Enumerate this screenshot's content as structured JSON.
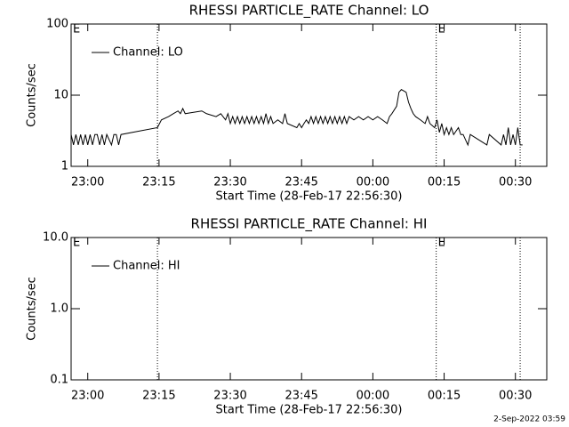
{
  "chart_data": [
    {
      "type": "line",
      "title": "RHESSI PARTICLE_RATE Channel: LO",
      "xlabel": "Start Time (28-Feb-17 22:56:30)",
      "ylabel": "Counts/sec",
      "log_y": true,
      "legend": "upper left",
      "xlim": [
        "22:56:30",
        "00:36:36"
      ],
      "xticks": [
        {
          "value": "23:00:00",
          "label": "23:00"
        },
        {
          "value": "23:15:00",
          "label": "23:15"
        },
        {
          "value": "23:30:00",
          "label": "23:30"
        },
        {
          "value": "23:45:00",
          "label": "23:45"
        },
        {
          "value": "00:00:00",
          "label": "00:00"
        },
        {
          "value": "00:15:00",
          "label": "00:15"
        },
        {
          "value": "00:30:00",
          "label": "00:30"
        }
      ],
      "ylim": [
        1,
        100
      ],
      "yticks": [
        1,
        10,
        100
      ],
      "vlines": [
        "23:14:40",
        "00:13:20",
        "00:31:00"
      ],
      "flags": [
        {
          "x": "22:56:30",
          "label": "E"
        },
        {
          "x": "00:13:20",
          "label": "E"
        }
      ],
      "series": [
        {
          "name": "Channel: LO",
          "color": "#000000",
          "x": [
            "22:56:30",
            "22:57:00",
            "22:57:30",
            "22:58:00",
            "22:58:30",
            "22:59:00",
            "22:59:30",
            "23:00:00",
            "23:00:30",
            "23:01:00",
            "23:01:30",
            "23:02:00",
            "23:02:30",
            "23:03:00",
            "23:03:30",
            "23:04:00",
            "23:05:00",
            "23:05:30",
            "23:06:00",
            "23:06:30",
            "23:07:00",
            "23:14:40",
            "23:15:30",
            "23:17:00",
            "23:18:00",
            "23:19:00",
            "23:19:30",
            "23:20:00",
            "23:20:30",
            "23:24:00",
            "23:25:00",
            "23:27:00",
            "23:28:00",
            "23:29:00",
            "23:29:30",
            "23:30:00",
            "23:30:30",
            "23:31:00",
            "23:31:30",
            "23:32:00",
            "23:32:30",
            "23:33:00",
            "23:33:30",
            "23:34:00",
            "23:34:30",
            "23:35:00",
            "23:35:30",
            "23:36:00",
            "23:36:30",
            "23:37:00",
            "23:37:30",
            "23:38:00",
            "23:38:30",
            "23:39:00",
            "23:40:00",
            "23:41:00",
            "23:41:30",
            "23:42:00",
            "23:44:00",
            "23:44:30",
            "23:45:00",
            "23:45:30",
            "23:46:00",
            "23:46:30",
            "23:47:00",
            "23:47:30",
            "23:48:00",
            "23:48:30",
            "23:49:00",
            "23:49:30",
            "23:50:00",
            "23:50:30",
            "23:51:00",
            "23:51:30",
            "23:52:00",
            "23:52:30",
            "23:53:00",
            "23:53:30",
            "23:54:00",
            "23:54:30",
            "23:55:00",
            "23:56:00",
            "23:57:00",
            "23:58:00",
            "23:59:00",
            "00:00:00",
            "00:01:00",
            "00:02:00",
            "00:03:00",
            "00:03:30",
            "00:04:00",
            "00:05:00",
            "00:05:30",
            "00:06:00",
            "00:07:00",
            "00:07:30",
            "00:08:00",
            "00:08:30",
            "00:09:00",
            "00:10:00",
            "00:11:00",
            "00:11:30",
            "00:12:00",
            "00:13:00",
            "00:13:30",
            "00:14:00",
            "00:14:30",
            "00:15:00",
            "00:15:30",
            "00:16:00",
            "00:16:30",
            "00:17:00",
            "00:18:00",
            "00:18:30",
            "00:19:00",
            "00:20:00",
            "00:20:30",
            "00:24:00",
            "00:24:30",
            "00:27:00",
            "00:27:30",
            "00:28:00",
            "00:28:30",
            "00:29:00",
            "00:29:30",
            "00:30:00",
            "00:30:30",
            "00:31:00",
            "00:31:30"
          ],
          "values": [
            2.8,
            2,
            2.8,
            2,
            2.8,
            2,
            2.8,
            2,
            2.8,
            2,
            2.8,
            2.8,
            2,
            2.8,
            2,
            2.8,
            2,
            2.8,
            2.8,
            2,
            2.8,
            3.5,
            4.5,
            5,
            5.5,
            6,
            5.5,
            6.5,
            5.5,
            6,
            5.5,
            5,
            5.5,
            4.5,
            5.5,
            4,
            5,
            4,
            5,
            4,
            5,
            4,
            5,
            4,
            5,
            4,
            5,
            4,
            5,
            4,
            5.5,
            4,
            5,
            4,
            4.5,
            4,
            5.5,
            4,
            3.5,
            4,
            3.5,
            4,
            4.5,
            4,
            5,
            4,
            5,
            4,
            5,
            4,
            5,
            4,
            5,
            4,
            5,
            4,
            5,
            4,
            5,
            4,
            5,
            4.5,
            5,
            4.5,
            5,
            4.5,
            5,
            4.5,
            4,
            5,
            5.5,
            7,
            11,
            12,
            11,
            8,
            6.5,
            5.5,
            5,
            4.5,
            4,
            5,
            4,
            3.5,
            4.5,
            3,
            4,
            2.8,
            3.5,
            2.8,
            3.5,
            2.8,
            3.5,
            2.8,
            2.8,
            2,
            2.8,
            2,
            2.8,
            2,
            2.8,
            2,
            3.5,
            2,
            2.8,
            2,
            3.5,
            2,
            2
          ]
        }
      ]
    },
    {
      "type": "line",
      "title": "RHESSI PARTICLE_RATE Channel: HI",
      "xlabel": "Start Time (28-Feb-17 22:56:30)",
      "ylabel": "Counts/sec",
      "log_y": true,
      "legend": "upper left",
      "xlim": [
        "22:56:30",
        "00:36:36"
      ],
      "xticks": [
        {
          "value": "23:00:00",
          "label": "23:00"
        },
        {
          "value": "23:15:00",
          "label": "23:15"
        },
        {
          "value": "23:30:00",
          "label": "23:30"
        },
        {
          "value": "23:45:00",
          "label": "23:45"
        },
        {
          "value": "00:00:00",
          "label": "00:00"
        },
        {
          "value": "00:15:00",
          "label": "00:15"
        },
        {
          "value": "00:30:00",
          "label": "00:30"
        }
      ],
      "ylim": [
        0.1,
        10
      ],
      "yticks": [
        0.1,
        {
          "value": 1,
          "label": "1.0"
        },
        {
          "value": 10,
          "label": "10.0"
        }
      ],
      "vlines": [
        "23:14:40",
        "00:13:20",
        "00:31:00"
      ],
      "flags": [
        {
          "x": "22:56:30",
          "label": "E"
        },
        {
          "x": "00:13:20",
          "label": "E"
        }
      ],
      "series": [
        {
          "name": "Channel: HI",
          "color": "#000000",
          "x": [],
          "values": []
        }
      ]
    }
  ],
  "footer": "2-Sep-2022 03:59"
}
